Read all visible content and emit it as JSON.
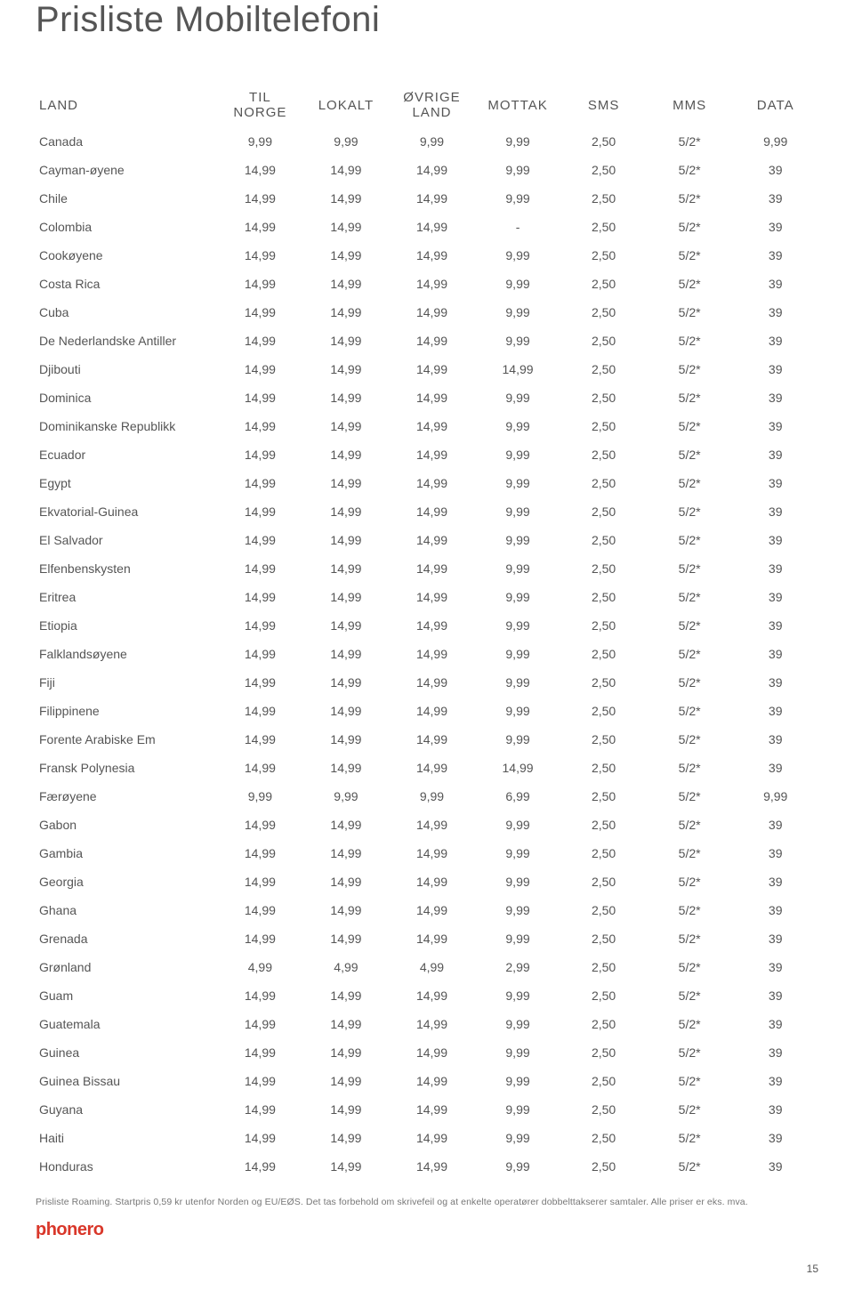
{
  "title": "Prisliste Mobiltelefoni",
  "columns": [
    "LAND",
    "TIL NORGE",
    "LOKALT",
    "ØVRIGE LAND",
    "MOTTAK",
    "SMS",
    "MMS",
    "DATA"
  ],
  "rows": [
    [
      "Canada",
      "9,99",
      "9,99",
      "9,99",
      "9,99",
      "2,50",
      "5/2*",
      "9,99"
    ],
    [
      "Cayman-øyene",
      "14,99",
      "14,99",
      "14,99",
      "9,99",
      "2,50",
      "5/2*",
      "39"
    ],
    [
      "Chile",
      "14,99",
      "14,99",
      "14,99",
      "9,99",
      "2,50",
      "5/2*",
      "39"
    ],
    [
      "Colombia",
      "14,99",
      "14,99",
      "14,99",
      "-",
      "2,50",
      "5/2*",
      "39"
    ],
    [
      "Cookøyene",
      "14,99",
      "14,99",
      "14,99",
      "9,99",
      "2,50",
      "5/2*",
      "39"
    ],
    [
      "Costa Rica",
      "14,99",
      "14,99",
      "14,99",
      "9,99",
      "2,50",
      "5/2*",
      "39"
    ],
    [
      "Cuba",
      "14,99",
      "14,99",
      "14,99",
      "9,99",
      "2,50",
      "5/2*",
      "39"
    ],
    [
      "De Nederlandske Antiller",
      "14,99",
      "14,99",
      "14,99",
      "9,99",
      "2,50",
      "5/2*",
      "39"
    ],
    [
      "Djibouti",
      "14,99",
      "14,99",
      "14,99",
      "14,99",
      "2,50",
      "5/2*",
      "39"
    ],
    [
      "Dominica",
      "14,99",
      "14,99",
      "14,99",
      "9,99",
      "2,50",
      "5/2*",
      "39"
    ],
    [
      "Dominikanske Republikk",
      "14,99",
      "14,99",
      "14,99",
      "9,99",
      "2,50",
      "5/2*",
      "39"
    ],
    [
      "Ecuador",
      "14,99",
      "14,99",
      "14,99",
      "9,99",
      "2,50",
      "5/2*",
      "39"
    ],
    [
      "Egypt",
      "14,99",
      "14,99",
      "14,99",
      "9,99",
      "2,50",
      "5/2*",
      "39"
    ],
    [
      "Ekvatorial-Guinea",
      "14,99",
      "14,99",
      "14,99",
      "9,99",
      "2,50",
      "5/2*",
      "39"
    ],
    [
      "El Salvador",
      "14,99",
      "14,99",
      "14,99",
      "9,99",
      "2,50",
      "5/2*",
      "39"
    ],
    [
      "Elfenbenskysten",
      "14,99",
      "14,99",
      "14,99",
      "9,99",
      "2,50",
      "5/2*",
      "39"
    ],
    [
      "Eritrea",
      "14,99",
      "14,99",
      "14,99",
      "9,99",
      "2,50",
      "5/2*",
      "39"
    ],
    [
      "Etiopia",
      "14,99",
      "14,99",
      "14,99",
      "9,99",
      "2,50",
      "5/2*",
      "39"
    ],
    [
      "Falklandsøyene",
      "14,99",
      "14,99",
      "14,99",
      "9,99",
      "2,50",
      "5/2*",
      "39"
    ],
    [
      "Fiji",
      "14,99",
      "14,99",
      "14,99",
      "9,99",
      "2,50",
      "5/2*",
      "39"
    ],
    [
      "Filippinene",
      "14,99",
      "14,99",
      "14,99",
      "9,99",
      "2,50",
      "5/2*",
      "39"
    ],
    [
      "Forente Arabiske Em",
      "14,99",
      "14,99",
      "14,99",
      "9,99",
      "2,50",
      "5/2*",
      "39"
    ],
    [
      "Fransk Polynesia",
      "14,99",
      "14,99",
      "14,99",
      "14,99",
      "2,50",
      "5/2*",
      "39"
    ],
    [
      "Færøyene",
      "9,99",
      "9,99",
      "9,99",
      "6,99",
      "2,50",
      "5/2*",
      "9,99"
    ],
    [
      "Gabon",
      "14,99",
      "14,99",
      "14,99",
      "9,99",
      "2,50",
      "5/2*",
      "39"
    ],
    [
      "Gambia",
      "14,99",
      "14,99",
      "14,99",
      "9,99",
      "2,50",
      "5/2*",
      "39"
    ],
    [
      "Georgia",
      "14,99",
      "14,99",
      "14,99",
      "9,99",
      "2,50",
      "5/2*",
      "39"
    ],
    [
      "Ghana",
      "14,99",
      "14,99",
      "14,99",
      "9,99",
      "2,50",
      "5/2*",
      "39"
    ],
    [
      "Grenada",
      "14,99",
      "14,99",
      "14,99",
      "9,99",
      "2,50",
      "5/2*",
      "39"
    ],
    [
      "Grønland",
      "4,99",
      "4,99",
      "4,99",
      "2,99",
      "2,50",
      "5/2*",
      "39"
    ],
    [
      "Guam",
      "14,99",
      "14,99",
      "14,99",
      "9,99",
      "2,50",
      "5/2*",
      "39"
    ],
    [
      "Guatemala",
      "14,99",
      "14,99",
      "14,99",
      "9,99",
      "2,50",
      "5/2*",
      "39"
    ],
    [
      "Guinea",
      "14,99",
      "14,99",
      "14,99",
      "9,99",
      "2,50",
      "5/2*",
      "39"
    ],
    [
      "Guinea Bissau",
      "14,99",
      "14,99",
      "14,99",
      "9,99",
      "2,50",
      "5/2*",
      "39"
    ],
    [
      "Guyana",
      "14,99",
      "14,99",
      "14,99",
      "9,99",
      "2,50",
      "5/2*",
      "39"
    ],
    [
      "Haiti",
      "14,99",
      "14,99",
      "14,99",
      "9,99",
      "2,50",
      "5/2*",
      "39"
    ],
    [
      "Honduras",
      "14,99",
      "14,99",
      "14,99",
      "9,99",
      "2,50",
      "5/2*",
      "39"
    ]
  ],
  "footnote": "Prisliste Roaming. Startpris 0,59 kr utenfor Norden og EU/EØS. Det tas forbehold om skrivefeil og at enkelte operatører dobbelttakserer samtaler. Alle priser er eks. mva.",
  "logo_text": "phonero",
  "page_number": "15",
  "colors": {
    "text": "#555555",
    "footnote": "#777777",
    "logo": "#d9372a",
    "background": "#ffffff"
  },
  "typography": {
    "title_fontsize": 40,
    "header_fontsize": 15,
    "cell_fontsize": 14,
    "footnote_fontsize": 10.5
  }
}
